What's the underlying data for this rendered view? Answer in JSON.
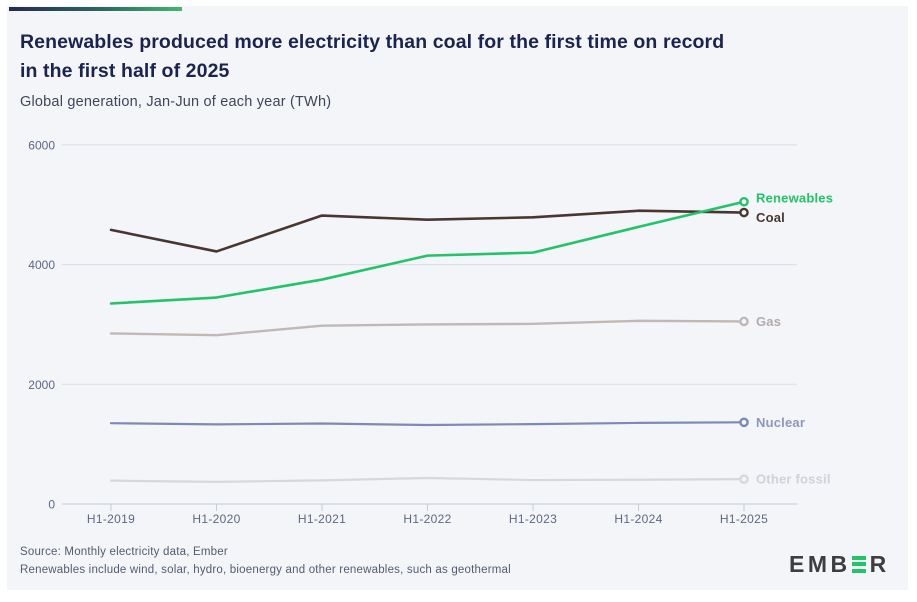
{
  "header": {
    "title_line1": "Renewables produced more electricity than coal for the first time on record",
    "title_line2": "in the first half of 2025",
    "subtitle": "Global generation, Jan-Jun of each year (TWh)"
  },
  "chart_data": {
    "type": "line",
    "title": "Renewables produced more electricity than coal for the first time on record in the first half of 2025",
    "subtitle": "Global generation, Jan-Jun of each year (TWh)",
    "unit": "TWh",
    "categories": [
      "H1-2019",
      "H1-2020",
      "H1-2021",
      "H1-2022",
      "H1-2023",
      "H1-2024",
      "H1-2025"
    ],
    "series": [
      {
        "name": "Renewables",
        "color": "#22c369",
        "label_color": "#22c369",
        "values": [
          3350,
          3450,
          3750,
          4150,
          4200,
          4630,
          5050
        ],
        "label_dy": -4
      },
      {
        "name": "Coal",
        "color": "#483630",
        "label_color": "#483630",
        "values": [
          4580,
          4220,
          4820,
          4750,
          4790,
          4900,
          4870
        ],
        "label_dy": 5
      },
      {
        "name": "Gas",
        "color": "#c0b8b5",
        "label_color": "#b3abac",
        "values": [
          2850,
          2820,
          2980,
          3000,
          3010,
          3060,
          3050
        ],
        "label_dy": 0
      },
      {
        "name": "Nuclear",
        "color": "#7c8ab6",
        "label_color": "#8e97ba",
        "values": [
          1350,
          1330,
          1345,
          1320,
          1335,
          1355,
          1365
        ],
        "label_dy": 0
      },
      {
        "name": "Other fossil",
        "color": "#d9d7db",
        "label_color": "#d2d0d8",
        "values": [
          390,
          370,
          395,
          435,
          400,
          405,
          415
        ],
        "label_dy": 0
      }
    ],
    "y_ticks": [
      0,
      2000,
      4000,
      6000
    ],
    "ylim": [
      0,
      6000
    ],
    "grid": true,
    "legend_position": "line-end-labels",
    "axis_label_color": "#5d6884",
    "gridline_color": "#dadde6",
    "zeroline_color": "#c6cbd7",
    "plot_background": "#f3f5f9"
  },
  "footer": {
    "source_line1": "Source: Monthly electricity data, Ember",
    "source_line2": "Renewables include wind, solar, hydro, bioenergy and other renewables, such as geothermal",
    "logo_pre": "EMB",
    "logo_post": "R"
  }
}
